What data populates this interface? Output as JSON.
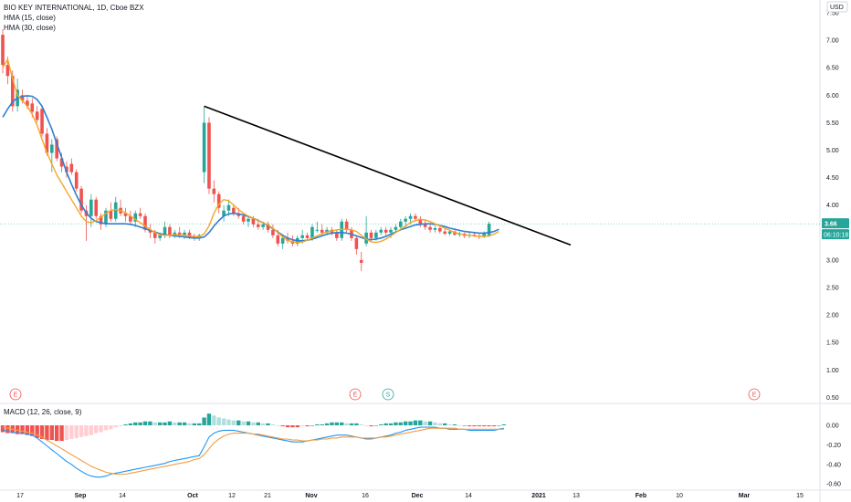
{
  "header": {
    "symbol_line": "BIO KEY INTERNATIONAL, 1D, Cboe BZX",
    "hma15": "HMA (15, close)",
    "hma30": "HMA (30, close)",
    "currency": "USD",
    "macd": "MACD (12, 26, close, 9)"
  },
  "colors": {
    "up": "#26a69a",
    "down": "#ef5350",
    "hma15": "#f5a623",
    "hma30": "#2f7fd1",
    "trend": "#000000",
    "macd_line": "#2196f3",
    "signal_line": "#f59b42",
    "hist_up_strong": "#26a69a",
    "hist_up_weak": "#b2dfdb",
    "hist_down_strong": "#ef5350",
    "hist_down_weak": "#ffcdd2",
    "last_price_badge": "#26a69a"
  },
  "chart_data": [
    {
      "type": "candlestick",
      "x_tick_labels": [
        "17",
        "Sep",
        "14",
        "Oct",
        "12",
        "21",
        "Nov",
        "16",
        "Dec",
        "14",
        "2021",
        "13",
        "Feb",
        "10",
        "Mar",
        "15"
      ],
      "y_tick_labels": [
        "7.50",
        "7.00",
        "6.50",
        "6.00",
        "5.50",
        "5.00",
        "4.50",
        "4.00",
        "3.50",
        "3.00",
        "2.50",
        "2.00",
        "1.50",
        "1.00",
        "0.50"
      ],
      "ylim": [
        0.5,
        7.5
      ],
      "last_price": "3.66",
      "countdown": "06:10:18",
      "events": [
        "E",
        "E",
        "S",
        "E"
      ],
      "candles": [
        {
          "o": 7.1,
          "h": 7.2,
          "l": 6.4,
          "c": 6.55
        },
        {
          "o": 6.55,
          "h": 6.7,
          "l": 6.2,
          "c": 6.35
        },
        {
          "o": 6.35,
          "h": 6.45,
          "l": 5.7,
          "c": 5.8
        },
        {
          "o": 5.8,
          "h": 6.3,
          "l": 5.7,
          "c": 6.1
        },
        {
          "o": 6.0,
          "h": 6.1,
          "l": 5.85,
          "c": 5.9
        },
        {
          "o": 5.9,
          "h": 6.0,
          "l": 5.75,
          "c": 5.8
        },
        {
          "o": 5.85,
          "h": 5.95,
          "l": 5.6,
          "c": 5.7
        },
        {
          "o": 5.7,
          "h": 5.8,
          "l": 5.5,
          "c": 5.55
        },
        {
          "o": 5.75,
          "h": 5.8,
          "l": 5.25,
          "c": 5.3
        },
        {
          "o": 5.3,
          "h": 5.4,
          "l": 4.9,
          "c": 4.95
        },
        {
          "o": 4.95,
          "h": 5.2,
          "l": 4.6,
          "c": 5.1
        },
        {
          "o": 5.2,
          "h": 5.25,
          "l": 4.8,
          "c": 4.85
        },
        {
          "o": 4.85,
          "h": 4.95,
          "l": 4.6,
          "c": 4.7
        },
        {
          "o": 4.7,
          "h": 4.8,
          "l": 4.5,
          "c": 4.6
        },
        {
          "o": 4.75,
          "h": 4.85,
          "l": 4.55,
          "c": 4.6
        },
        {
          "o": 4.6,
          "h": 4.65,
          "l": 4.25,
          "c": 4.3
        },
        {
          "o": 4.3,
          "h": 4.35,
          "l": 3.85,
          "c": 3.9
        },
        {
          "o": 3.9,
          "h": 4.0,
          "l": 3.35,
          "c": 3.8
        },
        {
          "o": 3.8,
          "h": 4.2,
          "l": 3.6,
          "c": 4.1
        },
        {
          "o": 4.1,
          "h": 4.15,
          "l": 3.75,
          "c": 3.8
        },
        {
          "o": 3.8,
          "h": 3.85,
          "l": 3.55,
          "c": 3.65
        },
        {
          "o": 3.65,
          "h": 3.95,
          "l": 3.6,
          "c": 3.9
        },
        {
          "o": 3.9,
          "h": 4.05,
          "l": 3.7,
          "c": 3.75
        },
        {
          "o": 3.75,
          "h": 4.15,
          "l": 3.7,
          "c": 4.05
        },
        {
          "o": 3.95,
          "h": 4.1,
          "l": 3.8,
          "c": 3.85
        },
        {
          "o": 3.85,
          "h": 3.95,
          "l": 3.7,
          "c": 3.8
        },
        {
          "o": 3.8,
          "h": 3.9,
          "l": 3.65,
          "c": 3.7
        },
        {
          "o": 3.7,
          "h": 3.9,
          "l": 3.6,
          "c": 3.85
        },
        {
          "o": 3.85,
          "h": 3.95,
          "l": 3.75,
          "c": 3.8
        },
        {
          "o": 3.8,
          "h": 3.85,
          "l": 3.5,
          "c": 3.55
        },
        {
          "o": 3.55,
          "h": 3.65,
          "l": 3.4,
          "c": 3.5
        },
        {
          "o": 3.5,
          "h": 3.55,
          "l": 3.3,
          "c": 3.4
        },
        {
          "o": 3.4,
          "h": 3.5,
          "l": 3.35,
          "c": 3.45
        },
        {
          "o": 3.45,
          "h": 3.7,
          "l": 3.4,
          "c": 3.6
        },
        {
          "o": 3.6,
          "h": 3.65,
          "l": 3.4,
          "c": 3.45
        },
        {
          "o": 3.45,
          "h": 3.55,
          "l": 3.4,
          "c": 3.5
        },
        {
          "o": 3.5,
          "h": 3.6,
          "l": 3.4,
          "c": 3.45
        },
        {
          "o": 3.45,
          "h": 3.55,
          "l": 3.38,
          "c": 3.5
        },
        {
          "o": 3.5,
          "h": 3.55,
          "l": 3.38,
          "c": 3.42
        },
        {
          "o": 3.42,
          "h": 3.48,
          "l": 3.35,
          "c": 3.4
        },
        {
          "o": 3.4,
          "h": 3.48,
          "l": 3.35,
          "c": 3.45
        },
        {
          "o": 4.6,
          "h": 5.8,
          "l": 4.4,
          "c": 5.5
        },
        {
          "o": 5.5,
          "h": 5.6,
          "l": 4.2,
          "c": 4.3
        },
        {
          "o": 4.3,
          "h": 4.45,
          "l": 4.05,
          "c": 4.2
        },
        {
          "o": 4.2,
          "h": 4.25,
          "l": 3.85,
          "c": 3.95
        },
        {
          "o": 3.8,
          "h": 4.0,
          "l": 3.7,
          "c": 3.9
        },
        {
          "o": 3.9,
          "h": 4.1,
          "l": 3.8,
          "c": 4.0
        },
        {
          "o": 3.95,
          "h": 4.0,
          "l": 3.8,
          "c": 3.85
        },
        {
          "o": 3.85,
          "h": 3.95,
          "l": 3.75,
          "c": 3.8
        },
        {
          "o": 3.8,
          "h": 3.85,
          "l": 3.65,
          "c": 3.7
        },
        {
          "o": 3.7,
          "h": 3.8,
          "l": 3.6,
          "c": 3.75
        },
        {
          "o": 3.75,
          "h": 3.8,
          "l": 3.6,
          "c": 3.65
        },
        {
          "o": 3.65,
          "h": 3.75,
          "l": 3.55,
          "c": 3.6
        },
        {
          "o": 3.6,
          "h": 3.7,
          "l": 3.55,
          "c": 3.65
        },
        {
          "o": 3.65,
          "h": 3.7,
          "l": 3.5,
          "c": 3.55
        },
        {
          "o": 3.55,
          "h": 3.65,
          "l": 3.4,
          "c": 3.45
        },
        {
          "o": 3.45,
          "h": 3.55,
          "l": 3.25,
          "c": 3.3
        },
        {
          "o": 3.3,
          "h": 3.45,
          "l": 3.2,
          "c": 3.4
        },
        {
          "o": 3.4,
          "h": 3.5,
          "l": 3.3,
          "c": 3.35
        },
        {
          "o": 3.35,
          "h": 3.45,
          "l": 3.25,
          "c": 3.3
        },
        {
          "o": 3.3,
          "h": 3.45,
          "l": 3.25,
          "c": 3.4
        },
        {
          "o": 3.4,
          "h": 3.55,
          "l": 3.3,
          "c": 3.45
        },
        {
          "o": 3.45,
          "h": 3.5,
          "l": 3.35,
          "c": 3.4
        },
        {
          "o": 3.4,
          "h": 3.65,
          "l": 3.35,
          "c": 3.6
        },
        {
          "o": 3.55,
          "h": 3.7,
          "l": 3.5,
          "c": 3.55
        },
        {
          "o": 3.55,
          "h": 3.65,
          "l": 3.45,
          "c": 3.5
        },
        {
          "o": 3.5,
          "h": 3.6,
          "l": 3.45,
          "c": 3.55
        },
        {
          "o": 3.55,
          "h": 3.6,
          "l": 3.45,
          "c": 3.5
        },
        {
          "o": 3.5,
          "h": 3.55,
          "l": 3.35,
          "c": 3.4
        },
        {
          "o": 3.4,
          "h": 3.75,
          "l": 3.35,
          "c": 3.7
        },
        {
          "o": 3.7,
          "h": 3.75,
          "l": 3.5,
          "c": 3.55
        },
        {
          "o": 3.55,
          "h": 3.6,
          "l": 3.35,
          "c": 3.4
        },
        {
          "o": 3.4,
          "h": 3.45,
          "l": 3.1,
          "c": 3.2
        },
        {
          "o": 3.0,
          "h": 3.15,
          "l": 2.8,
          "c": 2.95
        },
        {
          "o": 3.3,
          "h": 3.8,
          "l": 3.25,
          "c": 3.5
        },
        {
          "o": 3.5,
          "h": 3.55,
          "l": 3.35,
          "c": 3.4
        },
        {
          "o": 3.4,
          "h": 3.55,
          "l": 3.35,
          "c": 3.5
        },
        {
          "o": 3.5,
          "h": 3.6,
          "l": 3.45,
          "c": 3.55
        },
        {
          "o": 3.55,
          "h": 3.6,
          "l": 3.45,
          "c": 3.5
        },
        {
          "o": 3.5,
          "h": 3.6,
          "l": 3.4,
          "c": 3.55
        },
        {
          "o": 3.55,
          "h": 3.65,
          "l": 3.5,
          "c": 3.6
        },
        {
          "o": 3.6,
          "h": 3.75,
          "l": 3.55,
          "c": 3.7
        },
        {
          "o": 3.7,
          "h": 3.8,
          "l": 3.6,
          "c": 3.75
        },
        {
          "o": 3.75,
          "h": 3.85,
          "l": 3.65,
          "c": 3.8
        },
        {
          "o": 3.8,
          "h": 3.85,
          "l": 3.7,
          "c": 3.75
        },
        {
          "o": 3.75,
          "h": 3.8,
          "l": 3.6,
          "c": 3.65
        },
        {
          "o": 3.65,
          "h": 3.72,
          "l": 3.55,
          "c": 3.6
        },
        {
          "o": 3.6,
          "h": 3.65,
          "l": 3.5,
          "c": 3.55
        },
        {
          "o": 3.55,
          "h": 3.62,
          "l": 3.5,
          "c": 3.58
        },
        {
          "o": 3.58,
          "h": 3.62,
          "l": 3.48,
          "c": 3.52
        },
        {
          "o": 3.52,
          "h": 3.58,
          "l": 3.45,
          "c": 3.48
        },
        {
          "o": 3.48,
          "h": 3.55,
          "l": 3.44,
          "c": 3.52
        },
        {
          "o": 3.52,
          "h": 3.54,
          "l": 3.44,
          "c": 3.46
        },
        {
          "o": 3.46,
          "h": 3.52,
          "l": 3.42,
          "c": 3.48
        },
        {
          "o": 3.48,
          "h": 3.5,
          "l": 3.4,
          "c": 3.44
        },
        {
          "o": 3.44,
          "h": 3.5,
          "l": 3.4,
          "c": 3.46
        },
        {
          "o": 3.46,
          "h": 3.5,
          "l": 3.42,
          "c": 3.44
        },
        {
          "o": 3.44,
          "h": 3.48,
          "l": 3.38,
          "c": 3.42
        },
        {
          "o": 3.42,
          "h": 3.52,
          "l": 3.4,
          "c": 3.5
        },
        {
          "o": 3.45,
          "h": 3.7,
          "l": 3.42,
          "c": 3.66
        }
      ],
      "hma15": [
        6.5,
        6.65,
        6.3,
        6.0,
        5.9,
        5.8,
        5.65,
        5.45,
        5.2,
        4.95,
        4.75,
        4.55,
        4.4,
        4.25,
        4.1,
        3.95,
        3.8,
        3.7,
        3.68,
        3.72,
        3.78,
        3.85,
        3.9,
        3.92,
        3.9,
        3.86,
        3.8,
        3.74,
        3.68,
        3.62,
        3.56,
        3.5,
        3.46,
        3.45,
        3.45,
        3.46,
        3.46,
        3.45,
        3.44,
        3.43,
        3.42,
        3.48,
        3.62,
        3.85,
        4.02,
        4.1,
        4.08,
        4.0,
        3.92,
        3.85,
        3.8,
        3.76,
        3.72,
        3.68,
        3.64,
        3.58,
        3.5,
        3.42,
        3.36,
        3.33,
        3.32,
        3.33,
        3.36,
        3.4,
        3.44,
        3.48,
        3.51,
        3.53,
        3.55,
        3.56,
        3.56,
        3.55,
        3.52,
        3.45,
        3.38,
        3.33,
        3.32,
        3.34,
        3.38,
        3.44,
        3.5,
        3.56,
        3.62,
        3.68,
        3.72,
        3.74,
        3.73,
        3.7,
        3.66,
        3.62,
        3.58,
        3.54,
        3.5,
        3.48,
        3.46,
        3.45,
        3.44,
        3.43,
        3.43,
        3.44,
        3.47,
        3.52
      ],
      "hma30": [
        5.6,
        5.75,
        5.88,
        5.95,
        5.98,
        5.99,
        5.98,
        5.92,
        5.8,
        5.6,
        5.38,
        5.12,
        4.86,
        4.6,
        4.38,
        4.18,
        4.0,
        3.86,
        3.76,
        3.7,
        3.68,
        3.66,
        3.66,
        3.66,
        3.66,
        3.66,
        3.65,
        3.63,
        3.6,
        3.57,
        3.54,
        3.51,
        3.48,
        3.46,
        3.45,
        3.44,
        3.43,
        3.42,
        3.41,
        3.4,
        3.4,
        3.42,
        3.5,
        3.62,
        3.72,
        3.8,
        3.84,
        3.85,
        3.84,
        3.82,
        3.79,
        3.76,
        3.72,
        3.68,
        3.63,
        3.57,
        3.51,
        3.45,
        3.4,
        3.37,
        3.35,
        3.35,
        3.36,
        3.38,
        3.41,
        3.44,
        3.47,
        3.49,
        3.5,
        3.5,
        3.49,
        3.47,
        3.44,
        3.41,
        3.38,
        3.37,
        3.38,
        3.4,
        3.43,
        3.47,
        3.51,
        3.55,
        3.58,
        3.61,
        3.64,
        3.65,
        3.66,
        3.66,
        3.65,
        3.63,
        3.61,
        3.58,
        3.56,
        3.54,
        3.52,
        3.51,
        3.5,
        3.49,
        3.49,
        3.5,
        3.52,
        3.56
      ],
      "trendline": [
        {
          "i": 41,
          "v": 5.8
        },
        {
          "i": 111,
          "v": 3.43
        }
      ]
    },
    {
      "type": "macd",
      "y_tick_labels": [
        "0.00",
        "-0.20",
        "-0.40",
        "-0.60"
      ],
      "ylim": [
        -0.62,
        0.1
      ],
      "hist": [
        -0.07,
        -0.08,
        -0.08,
        -0.09,
        -0.09,
        -0.1,
        -0.11,
        -0.13,
        -0.14,
        -0.15,
        -0.15,
        -0.16,
        -0.16,
        -0.15,
        -0.14,
        -0.13,
        -0.12,
        -0.11,
        -0.1,
        -0.08,
        -0.07,
        -0.05,
        -0.04,
        -0.02,
        -0.01,
        0.01,
        0.02,
        0.03,
        0.03,
        0.04,
        0.04,
        0.03,
        0.03,
        0.03,
        0.04,
        0.03,
        0.03,
        0.03,
        0.02,
        0.02,
        0.02,
        0.08,
        0.12,
        0.1,
        0.08,
        0.07,
        0.06,
        0.05,
        0.05,
        0.04,
        0.04,
        0.03,
        0.03,
        0.02,
        0.02,
        0.01,
        0.0,
        -0.01,
        -0.02,
        -0.02,
        -0.02,
        -0.01,
        -0.01,
        0.0,
        0.01,
        0.01,
        0.02,
        0.03,
        0.03,
        0.03,
        0.02,
        0.02,
        0.02,
        0.01,
        0.0,
        -0.01,
        0.0,
        0.01,
        0.02,
        0.02,
        0.03,
        0.03,
        0.04,
        0.04,
        0.05,
        0.05,
        0.04,
        0.04,
        0.03,
        0.02,
        0.02,
        0.01,
        0.01,
        0.0,
        0.0,
        -0.01,
        -0.01,
        -0.01,
        -0.01,
        -0.01,
        -0.01,
        0.0,
        0.01
      ],
      "macd": [
        -0.05,
        -0.06,
        -0.07,
        -0.08,
        -0.08,
        -0.09,
        -0.1,
        -0.13,
        -0.17,
        -0.21,
        -0.25,
        -0.29,
        -0.33,
        -0.37,
        -0.4,
        -0.44,
        -0.47,
        -0.5,
        -0.52,
        -0.53,
        -0.53,
        -0.52,
        -0.5,
        -0.49,
        -0.48,
        -0.47,
        -0.46,
        -0.45,
        -0.44,
        -0.43,
        -0.42,
        -0.41,
        -0.4,
        -0.39,
        -0.37,
        -0.36,
        -0.35,
        -0.34,
        -0.33,
        -0.32,
        -0.31,
        -0.22,
        -0.12,
        -0.08,
        -0.06,
        -0.05,
        -0.05,
        -0.05,
        -0.06,
        -0.07,
        -0.08,
        -0.09,
        -0.1,
        -0.11,
        -0.12,
        -0.13,
        -0.14,
        -0.15,
        -0.16,
        -0.17,
        -0.17,
        -0.17,
        -0.16,
        -0.15,
        -0.14,
        -0.13,
        -0.12,
        -0.11,
        -0.1,
        -0.1,
        -0.1,
        -0.11,
        -0.12,
        -0.13,
        -0.14,
        -0.14,
        -0.13,
        -0.12,
        -0.11,
        -0.1,
        -0.08,
        -0.07,
        -0.05,
        -0.04,
        -0.03,
        -0.02,
        -0.02,
        -0.02,
        -0.02,
        -0.03,
        -0.03,
        -0.04,
        -0.04,
        -0.04,
        -0.04,
        -0.05,
        -0.05,
        -0.05,
        -0.05,
        -0.05,
        -0.05,
        -0.04,
        -0.03
      ],
      "signal": [
        -0.02,
        -0.03,
        -0.04,
        -0.05,
        -0.06,
        -0.07,
        -0.08,
        -0.1,
        -0.12,
        -0.15,
        -0.18,
        -0.21,
        -0.24,
        -0.27,
        -0.3,
        -0.33,
        -0.36,
        -0.39,
        -0.42,
        -0.44,
        -0.46,
        -0.48,
        -0.49,
        -0.5,
        -0.5,
        -0.5,
        -0.49,
        -0.48,
        -0.47,
        -0.46,
        -0.45,
        -0.44,
        -0.43,
        -0.42,
        -0.41,
        -0.4,
        -0.39,
        -0.38,
        -0.37,
        -0.35,
        -0.34,
        -0.3,
        -0.24,
        -0.18,
        -0.14,
        -0.11,
        -0.09,
        -0.08,
        -0.08,
        -0.08,
        -0.08,
        -0.09,
        -0.09,
        -0.1,
        -0.11,
        -0.12,
        -0.13,
        -0.14,
        -0.14,
        -0.15,
        -0.15,
        -0.16,
        -0.16,
        -0.15,
        -0.15,
        -0.14,
        -0.14,
        -0.13,
        -0.13,
        -0.12,
        -0.12,
        -0.12,
        -0.12,
        -0.13,
        -0.13,
        -0.13,
        -0.13,
        -0.12,
        -0.12,
        -0.11,
        -0.1,
        -0.09,
        -0.08,
        -0.07,
        -0.06,
        -0.05,
        -0.04,
        -0.03,
        -0.03,
        -0.03,
        -0.03,
        -0.03,
        -0.03,
        -0.04,
        -0.04,
        -0.04,
        -0.04,
        -0.04,
        -0.04,
        -0.04,
        -0.04,
        -0.04,
        -0.04
      ]
    }
  ]
}
